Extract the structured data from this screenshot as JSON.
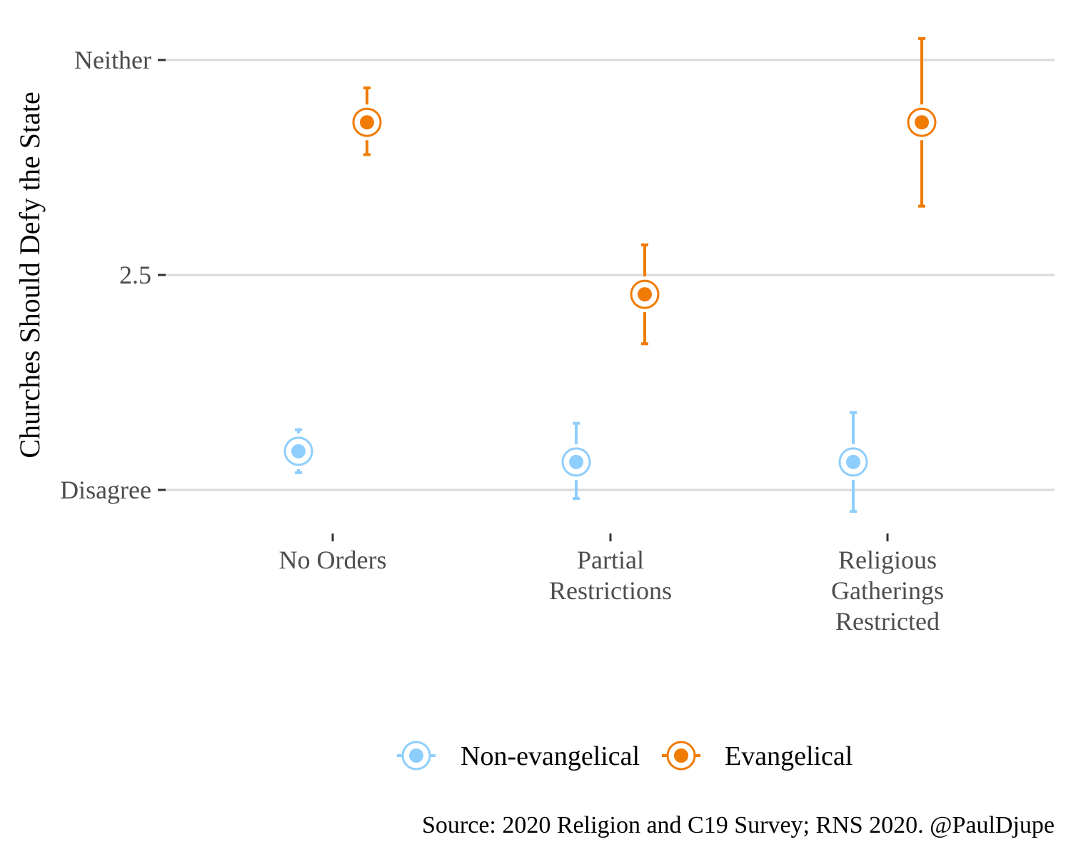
{
  "chart_data": {
    "type": "scatter",
    "subtype": "point-range (dodged, with error bars)",
    "title": "",
    "xlabel": "",
    "ylabel": "Churches Should Defy the State",
    "caption": "Source: 2020 Religion and C19 Survey; RNS 2020. @PaulDjupe",
    "categories": [
      [
        "No Orders"
      ],
      [
        "Partial",
        "Restrictions"
      ],
      [
        "Religious",
        "Gatherings",
        "Restricted"
      ]
    ],
    "category_names": [
      "No Orders",
      "Partial Restrictions",
      "Religious Gatherings Restricted"
    ],
    "ylim": [
      1.94,
      3.06
    ],
    "yticks": [
      {
        "value": 2,
        "label": "Disagree"
      },
      {
        "value": 2.5,
        "label": "2.5"
      },
      {
        "value": 3,
        "label": "Neither"
      }
    ],
    "grid": "horizontal major",
    "legend": {
      "position": "bottom",
      "entries": [
        "Non-evangelical",
        "Evangelical"
      ]
    },
    "series": [
      {
        "name": "Non-evangelical",
        "color": "#8ecefd",
        "values": [
          2.09,
          2.065,
          2.065
        ],
        "lower": [
          2.04,
          1.98,
          1.95
        ],
        "upper": [
          2.14,
          2.155,
          2.18
        ]
      },
      {
        "name": "Evangelical",
        "color": "#f07b05",
        "values": [
          2.855,
          2.455,
          2.855
        ],
        "lower": [
          2.78,
          2.34,
          2.66
        ],
        "upper": [
          2.935,
          2.57,
          3.05
        ]
      }
    ]
  }
}
